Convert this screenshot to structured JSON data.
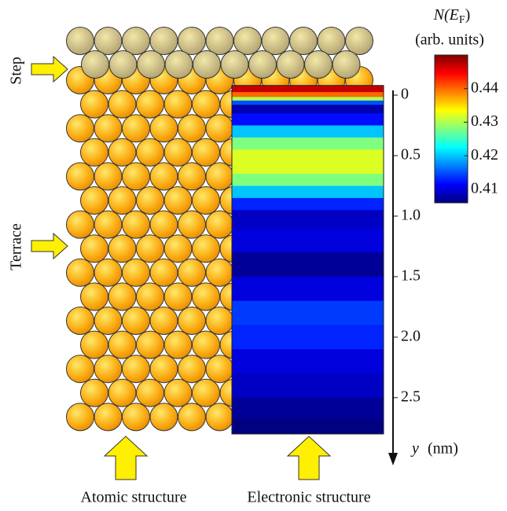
{
  "chart_data": {
    "type": "heatmap",
    "side_labels": [
      "Step",
      "Terrace"
    ],
    "bottom_labels": [
      "Atomic structure",
      "Electronic structure"
    ],
    "colorbar_title": [
      "N(",
      "E",
      "F",
      ")"
    ],
    "colorbar_subtitle": "(arb. units)",
    "axis_symbol": "y",
    "axis_unit": "(nm)",
    "y": [
      -0.05,
      0.0,
      0.03,
      0.06,
      0.1,
      0.2,
      0.3,
      0.4,
      0.5,
      0.6,
      0.7,
      0.8,
      0.9,
      1.0,
      1.2,
      1.4,
      1.6,
      1.8,
      2.0,
      2.2,
      2.4,
      2.6,
      2.75
    ],
    "values": [
      0.447,
      0.44,
      0.43,
      0.415,
      0.408,
      0.412,
      0.42,
      0.428,
      0.432,
      0.432,
      0.428,
      0.42,
      0.413,
      0.409,
      0.41,
      0.407,
      0.41,
      0.414,
      0.413,
      0.41,
      0.409,
      0.407,
      0.406
    ],
    "ylim": [
      -0.08,
      2.8
    ],
    "yticks": [
      0,
      0.5,
      {
        "value": 1,
        "label": "1.0"
      },
      1.5,
      {
        "value": 2,
        "label": "2.0"
      },
      2.5
    ],
    "clim": [
      0.406,
      0.45
    ],
    "cticks": [
      0.41,
      0.42,
      0.43,
      0.44
    ],
    "colormap": "jet"
  }
}
